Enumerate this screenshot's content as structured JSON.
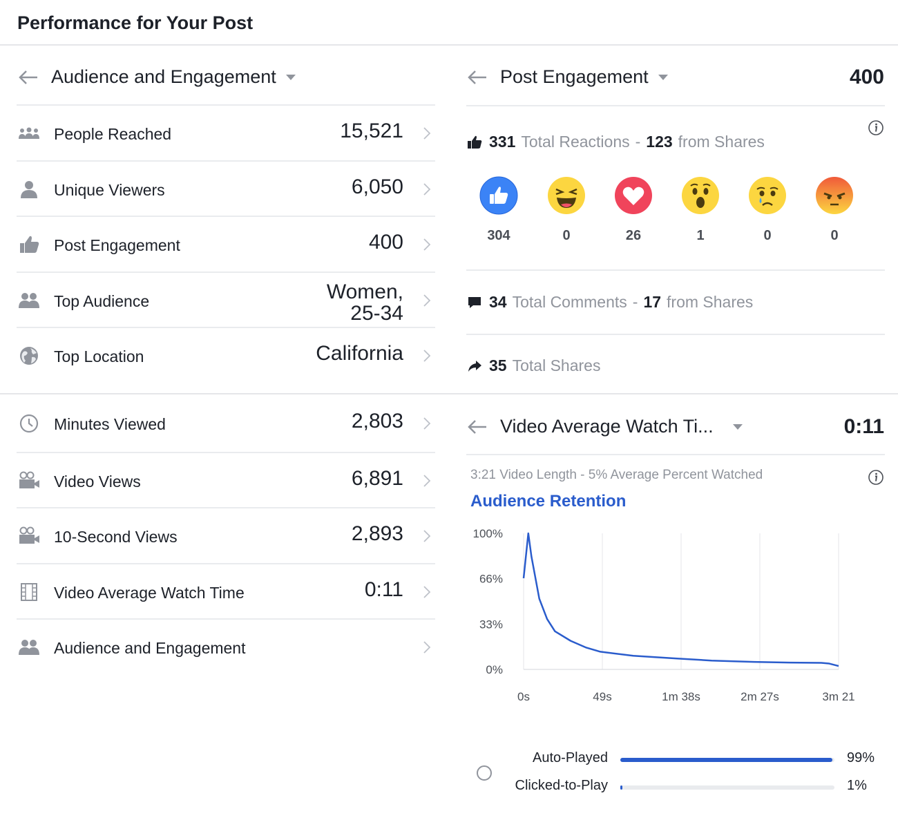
{
  "page_title": "Performance for Your Post",
  "audience_panel": {
    "title": "Audience and Engagement",
    "metrics": [
      {
        "icon": "people-reached-icon",
        "label": "People Reached",
        "value": "15,521"
      },
      {
        "icon": "person-icon",
        "label": "Unique Viewers",
        "value": "6,050"
      },
      {
        "icon": "thumbs-up-icon",
        "label": "Post Engagement",
        "value": "400"
      },
      {
        "icon": "group-icon",
        "label": "Top Audience",
        "value_line1": "Women,",
        "value_line2": "25-34"
      },
      {
        "icon": "globe-icon",
        "label": "Top Location",
        "value": "California"
      }
    ]
  },
  "video_metrics": [
    {
      "icon": "clock-icon",
      "label": "Minutes Viewed",
      "value": "2,803"
    },
    {
      "icon": "video-camera-icon",
      "label": "Video Views",
      "value": "6,891"
    },
    {
      "icon": "video-camera-icon",
      "label": "10-Second Views",
      "value": "2,893"
    },
    {
      "icon": "film-icon",
      "label": "Video Average Watch Time",
      "value": "0:11"
    },
    {
      "icon": "group-icon",
      "label": "Audience and Engagement",
      "value": ""
    }
  ],
  "engagement_panel": {
    "title": "Post Engagement",
    "value": "400",
    "reactions": {
      "total": "331",
      "total_label": "Total Reactions",
      "separator": "-",
      "from_shares": "123",
      "from_shares_label": "from Shares",
      "items": [
        {
          "icon": "like-reaction-icon",
          "count": "304"
        },
        {
          "icon": "haha-reaction-icon",
          "count": "0"
        },
        {
          "icon": "love-reaction-icon",
          "count": "26"
        },
        {
          "icon": "wow-reaction-icon",
          "count": "1"
        },
        {
          "icon": "sad-reaction-icon",
          "count": "0"
        },
        {
          "icon": "angry-reaction-icon",
          "count": "0"
        }
      ]
    },
    "comments": {
      "total": "34",
      "total_label": "Total Comments",
      "separator": "-",
      "from_shares": "17",
      "from_shares_label": "from Shares"
    },
    "shares": {
      "total": "35",
      "total_label": "Total Shares"
    }
  },
  "watch_panel": {
    "title": "Video Average Watch Ti...",
    "value": "0:11",
    "subline": "3:21 Video Length - 5% Average Percent Watched",
    "retention_title": "Audience Retention",
    "play_types": [
      {
        "label": "Auto-Played",
        "percent": 99,
        "value": "99%"
      },
      {
        "label": "Clicked-to-Play",
        "percent": 1,
        "value": "1%"
      }
    ]
  },
  "chart_data": {
    "type": "line",
    "title": "Audience Retention",
    "x_tick_labels": [
      "0s",
      "49s",
      "1m 38s",
      "2m 27s",
      "3m 21"
    ],
    "y_tick_labels": [
      "100%",
      "66%",
      "33%",
      "0%"
    ],
    "xlim": [
      0,
      201
    ],
    "ylim": [
      0,
      100
    ],
    "grid": true,
    "series": [
      {
        "color": "#2a5ccc",
        "x": [
          0,
          3,
          5,
          10,
          15,
          20,
          30,
          40,
          49,
          70,
          98,
          120,
          147,
          170,
          190,
          195,
          201
        ],
        "y": [
          67,
          100,
          83,
          52,
          37,
          28,
          21,
          16,
          13,
          10,
          8,
          6.5,
          5.5,
          5,
          4.8,
          4.3,
          2.5
        ]
      }
    ]
  },
  "colors": {
    "accent": "#2a5ccc",
    "text": "#1d2129",
    "muted": "#90949c"
  }
}
